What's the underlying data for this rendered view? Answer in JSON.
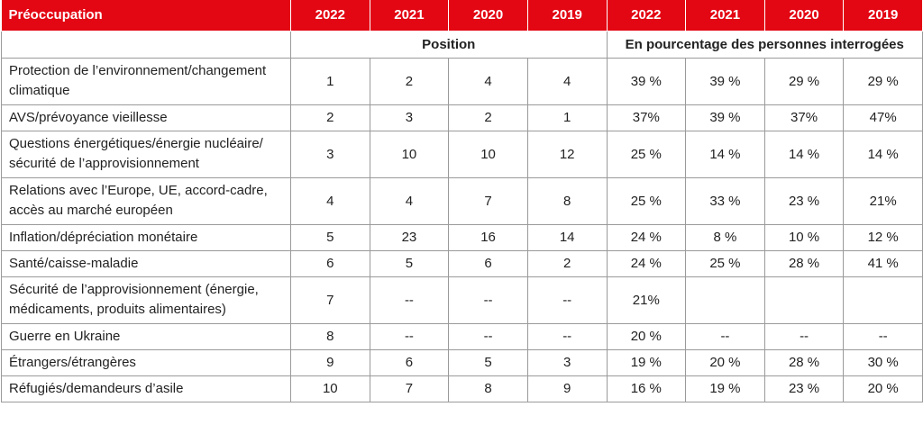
{
  "header": {
    "label": "Préoccupation",
    "years": [
      "2022",
      "2021",
      "2020",
      "2019",
      "2022",
      "2021",
      "2020",
      "2019"
    ]
  },
  "subheader": {
    "position": "Position",
    "percentage": "En pourcentage des personnes interrogées"
  },
  "rows": [
    {
      "label": "Protection de l’environnement/changement climatique",
      "values": [
        "1",
        "2",
        "4",
        "4",
        "39 %",
        "39 %",
        "29 %",
        "29 %"
      ]
    },
    {
      "label": "AVS/prévoyance vieillesse",
      "values": [
        "2",
        "3",
        "2",
        "1",
        "37%",
        "39 %",
        "37%",
        "47%"
      ]
    },
    {
      "label": "Questions énergétiques/énergie nucléaire/ sécurité de l’approvisionnement",
      "values": [
        "3",
        "10",
        "10",
        "12",
        "25 %",
        "14 %",
        "14 %",
        "14 %"
      ]
    },
    {
      "label": "Relations avec l’Europe, UE, accord-cadre, accès au marché européen",
      "values": [
        "4",
        "4",
        "7",
        "8",
        "25 %",
        "33 %",
        "23 %",
        "21%"
      ]
    },
    {
      "label": "Inflation/dépréciation monétaire",
      "values": [
        "5",
        "23",
        "16",
        "14",
        "24 %",
        "8 %",
        "10 %",
        "12 %"
      ]
    },
    {
      "label": "Santé/caisse-maladie",
      "values": [
        "6",
        "5",
        "6",
        "2",
        "24 %",
        "25 %",
        "28 %",
        "41 %"
      ]
    },
    {
      "label": "Sécurité de l’approvisionnement (énergie, médicaments, produits alimentaires)",
      "values": [
        "7",
        "--",
        "--",
        "--",
        "21%",
        "",
        "",
        ""
      ]
    },
    {
      "label": "Guerre en Ukraine",
      "values": [
        "8",
        "--",
        "--",
        "--",
        "20 %",
        "--",
        "--",
        "--"
      ]
    },
    {
      "label": "Étrangers/étrangères",
      "values": [
        "9",
        "6",
        "5",
        "3",
        "19 %",
        "20 %",
        "28 %",
        "30 %"
      ]
    },
    {
      "label": "Réfugiés/demandeurs d’asile",
      "values": [
        "10",
        "7",
        "8",
        "9",
        "16 %",
        "19 %",
        "23 %",
        "20 %"
      ]
    }
  ]
}
